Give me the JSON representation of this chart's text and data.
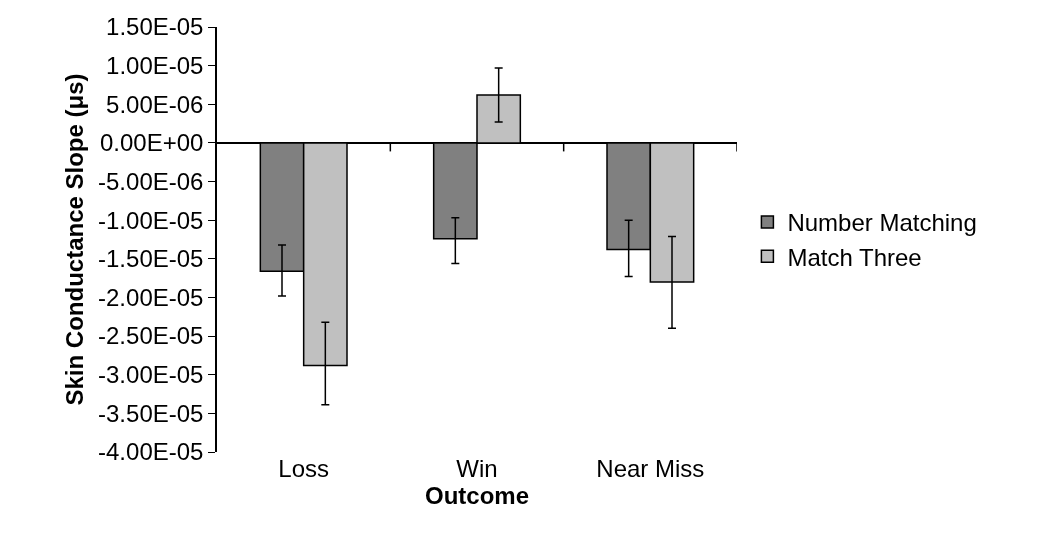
{
  "chart_data": {
    "type": "bar",
    "xlabel": "Outcome",
    "ylabel": "Skin Conductance Slope (μs)",
    "categories": [
      "Loss",
      "Win",
      "Near Miss"
    ],
    "series": [
      {
        "name": "Number Matching",
        "color": "#808080",
        "values": [
          -1.66e-05,
          -1.24e-05,
          -1.38e-05
        ],
        "errors": [
          [
            -1.98e-05,
            -1.32e-05
          ],
          [
            -1.56e-05,
            -9.7e-06
          ],
          [
            -1.73e-05,
            -1e-05
          ]
        ]
      },
      {
        "name": "Match Three",
        "color": "#c0c0c0",
        "values": [
          -2.88e-05,
          6.2e-06,
          -1.8e-05
        ],
        "errors": [
          [
            -3.39e-05,
            -2.32e-05
          ],
          [
            2.7e-06,
            9.7e-06
          ],
          [
            -2.4e-05,
            -1.21e-05
          ]
        ]
      }
    ],
    "ylim": [
      -4e-05,
      1.5e-05
    ],
    "yticks": [
      {
        "value": 1.5e-05,
        "label": "1.50E-05"
      },
      {
        "value": 1e-05,
        "label": "1.00E-05"
      },
      {
        "value": 5e-06,
        "label": "5.00E-06"
      },
      {
        "value": 0,
        "label": "0.00E+00"
      },
      {
        "value": -5e-06,
        "label": "-5.00E-06"
      },
      {
        "value": -1e-05,
        "label": "-1.00E-05"
      },
      {
        "value": -1.5e-05,
        "label": "-1.50E-05"
      },
      {
        "value": -2e-05,
        "label": "-2.00E-05"
      },
      {
        "value": -2.5e-05,
        "label": "-2.50E-05"
      },
      {
        "value": -3e-05,
        "label": "-3.00E-05"
      },
      {
        "value": -3.5e-05,
        "label": "-3.50E-05"
      },
      {
        "value": -4e-05,
        "label": "-4.00E-05"
      }
    ],
    "legend": "right"
  }
}
